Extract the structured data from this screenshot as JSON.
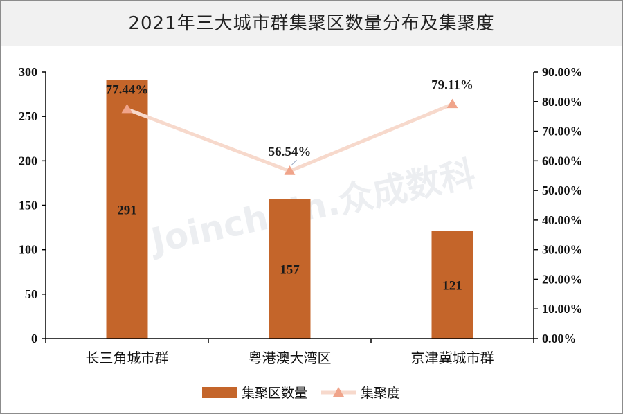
{
  "title": "2021年三大城市群集聚区数量分布及集聚度",
  "watermark": "Joinchain.众成数科",
  "colors": {
    "bar": "#c4652a",
    "line": "#f7d9cc",
    "marker": "#f0a48a",
    "axis": "#000000"
  },
  "chart_data": {
    "type": "bar",
    "categories": [
      "长三角城市群",
      "粤港澳大湾区",
      "京津冀城市群"
    ],
    "series": [
      {
        "name": "集聚区数量",
        "type": "bar",
        "axis": "left",
        "values": [
          291,
          157,
          121
        ],
        "labels": [
          "291",
          "157",
          "121"
        ]
      },
      {
        "name": "集聚度",
        "type": "line",
        "axis": "right",
        "marker": "triangle",
        "values": [
          77.44,
          56.54,
          79.11
        ],
        "labels": [
          "77.44%",
          "56.54%",
          "79.11%"
        ]
      }
    ],
    "y_left": {
      "min": 0,
      "max": 300,
      "ticks": [
        0,
        50,
        100,
        150,
        200,
        250,
        300
      ],
      "tick_labels": [
        "0",
        "50",
        "100",
        "150",
        "200",
        "250",
        "300"
      ]
    },
    "y_right": {
      "min": 0,
      "max": 90,
      "ticks": [
        0,
        10,
        20,
        30,
        40,
        50,
        60,
        70,
        80,
        90
      ],
      "tick_labels": [
        "0.00%",
        "10.00%",
        "20.00%",
        "30.00%",
        "40.00%",
        "50.00%",
        "60.00%",
        "70.00%",
        "80.00%",
        "90.00%"
      ]
    },
    "grid": false,
    "legend_position": "bottom-center"
  }
}
